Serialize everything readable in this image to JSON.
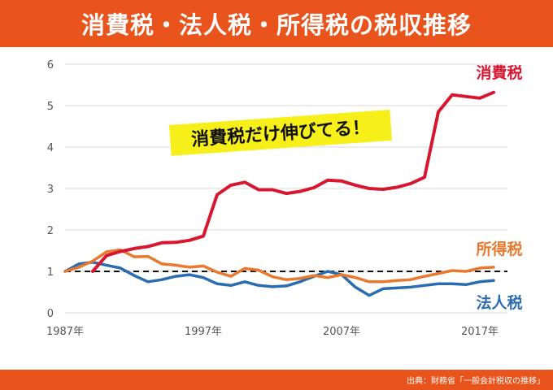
{
  "header": {
    "title": "消費税・法人税・所得税の税収推移"
  },
  "footer": {
    "source": "出典：財務省「一般会計税収の推移」"
  },
  "callout": {
    "text": "消費税だけ伸びてる！"
  },
  "colors": {
    "header_bg": "#e8541c",
    "consumption": "#d7172f",
    "income": "#e8792e",
    "corporate": "#2a6cb0",
    "baseline": "#111111",
    "callout_bg": "#f7ef1a"
  },
  "chart_data": {
    "type": "line",
    "x_ticks": [
      "1987年",
      "1997年",
      "2007年",
      "2017年"
    ],
    "y_ticks": [
      "0",
      "1",
      "2",
      "3",
      "4",
      "5",
      "6"
    ],
    "ylim": [
      0,
      6
    ],
    "xlim": [
      1987,
      2019
    ],
    "grid": true,
    "baseline": 1,
    "series": [
      {
        "name": "消費税",
        "key": "consumption",
        "x": [
          1989,
          1990,
          1991,
          1992,
          1993,
          1994,
          1995,
          1996,
          1997,
          1998,
          1999,
          2000,
          2001,
          2002,
          2003,
          2004,
          2005,
          2006,
          2007,
          2008,
          2009,
          2010,
          2011,
          2012,
          2013,
          2014,
          2015,
          2016,
          2017,
          2018
        ],
        "values": [
          1.0,
          1.38,
          1.48,
          1.55,
          1.6,
          1.69,
          1.7,
          1.75,
          1.85,
          2.85,
          3.08,
          3.15,
          2.97,
          2.97,
          2.88,
          2.93,
          3.02,
          3.2,
          3.18,
          3.08,
          3.0,
          2.98,
          3.03,
          3.12,
          3.27,
          4.85,
          5.26,
          5.22,
          5.18,
          5.32
        ]
      },
      {
        "name": "所得税",
        "key": "income",
        "x": [
          1987,
          1988,
          1989,
          1990,
          1991,
          1992,
          1993,
          1994,
          1995,
          1996,
          1997,
          1998,
          1999,
          2000,
          2001,
          2002,
          2003,
          2004,
          2005,
          2006,
          2007,
          2008,
          2009,
          2010,
          2011,
          2012,
          2013,
          2014,
          2015,
          2016,
          2017,
          2018
        ],
        "values": [
          1.0,
          1.1,
          1.25,
          1.47,
          1.52,
          1.35,
          1.36,
          1.18,
          1.15,
          1.1,
          1.13,
          0.98,
          0.88,
          1.07,
          1.03,
          0.87,
          0.8,
          0.83,
          0.9,
          0.85,
          0.92,
          0.85,
          0.75,
          0.75,
          0.78,
          0.8,
          0.88,
          0.95,
          1.02,
          1.0,
          1.08,
          1.1
        ]
      },
      {
        "name": "法人税",
        "key": "corporate",
        "x": [
          1987,
          1988,
          1989,
          1990,
          1991,
          1992,
          1993,
          1994,
          1995,
          1996,
          1997,
          1998,
          1999,
          2000,
          2001,
          2002,
          2003,
          2004,
          2005,
          2006,
          2007,
          2008,
          2009,
          2010,
          2011,
          2012,
          2013,
          2014,
          2015,
          2016,
          2017,
          2018
        ],
        "values": [
          1.0,
          1.18,
          1.22,
          1.15,
          1.08,
          0.9,
          0.75,
          0.8,
          0.88,
          0.92,
          0.85,
          0.7,
          0.66,
          0.75,
          0.66,
          0.63,
          0.65,
          0.75,
          0.88,
          1.0,
          0.92,
          0.62,
          0.42,
          0.58,
          0.6,
          0.62,
          0.66,
          0.7,
          0.7,
          0.68,
          0.75,
          0.78
        ]
      }
    ]
  }
}
